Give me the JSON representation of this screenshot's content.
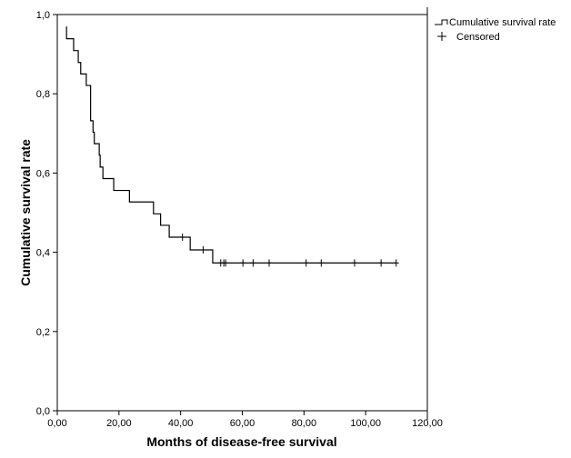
{
  "chart_data": {
    "type": "line",
    "subtype": "kaplan-meier-step",
    "xlabel": "Months of disease-free survival",
    "ylabel": "Cumulative survival rate",
    "xlim": [
      0,
      120
    ],
    "ylim": [
      0,
      1
    ],
    "xticks": [
      "0,00",
      "20,00",
      "40,00",
      "60,00",
      "80,00",
      "100,00",
      "120,00"
    ],
    "xtick_values": [
      0,
      20,
      40,
      60,
      80,
      100,
      120
    ],
    "yticks": [
      "0,0",
      "0,2",
      "0,4",
      "0,6",
      "0,8",
      "1,0"
    ],
    "ytick_values": [
      0,
      0.2,
      0.4,
      0.6,
      0.8,
      1.0
    ],
    "legend": {
      "placement": "top-right-outside",
      "entries": [
        "Cumulative survival rate",
        "Censored"
      ]
    },
    "start": {
      "t": 3.0,
      "s": 0.97
    },
    "steps": [
      {
        "t": 3.0,
        "s": 0.939
      },
      {
        "t": 5.3,
        "s": 0.909
      },
      {
        "t": 6.8,
        "s": 0.879
      },
      {
        "t": 7.6,
        "s": 0.85
      },
      {
        "t": 9.4,
        "s": 0.821
      },
      {
        "t": 10.8,
        "s": 0.732
      },
      {
        "t": 11.6,
        "s": 0.703
      },
      {
        "t": 12.0,
        "s": 0.674
      },
      {
        "t": 13.6,
        "s": 0.645
      },
      {
        "t": 13.9,
        "s": 0.615
      },
      {
        "t": 14.8,
        "s": 0.586
      },
      {
        "t": 18.3,
        "s": 0.556
      },
      {
        "t": 23.4,
        "s": 0.527
      },
      {
        "t": 31.2,
        "s": 0.497
      },
      {
        "t": 33.5,
        "s": 0.468
      },
      {
        "t": 36.3,
        "s": 0.438
      },
      {
        "t": 43.1,
        "s": 0.406
      },
      {
        "t": 50.4,
        "s": 0.373
      }
    ],
    "end_t": 110.0,
    "censored": [
      {
        "t": 40.6,
        "s": 0.438
      },
      {
        "t": 47.3,
        "s": 0.406
      },
      {
        "t": 53.0,
        "s": 0.373
      },
      {
        "t": 54.0,
        "s": 0.373
      },
      {
        "t": 54.6,
        "s": 0.373
      },
      {
        "t": 60.2,
        "s": 0.373
      },
      {
        "t": 63.5,
        "s": 0.373
      },
      {
        "t": 68.7,
        "s": 0.373
      },
      {
        "t": 80.7,
        "s": 0.373
      },
      {
        "t": 85.6,
        "s": 0.373
      },
      {
        "t": 96.4,
        "s": 0.373
      },
      {
        "t": 105.0,
        "s": 0.373
      },
      {
        "t": 109.9,
        "s": 0.373
      }
    ]
  }
}
